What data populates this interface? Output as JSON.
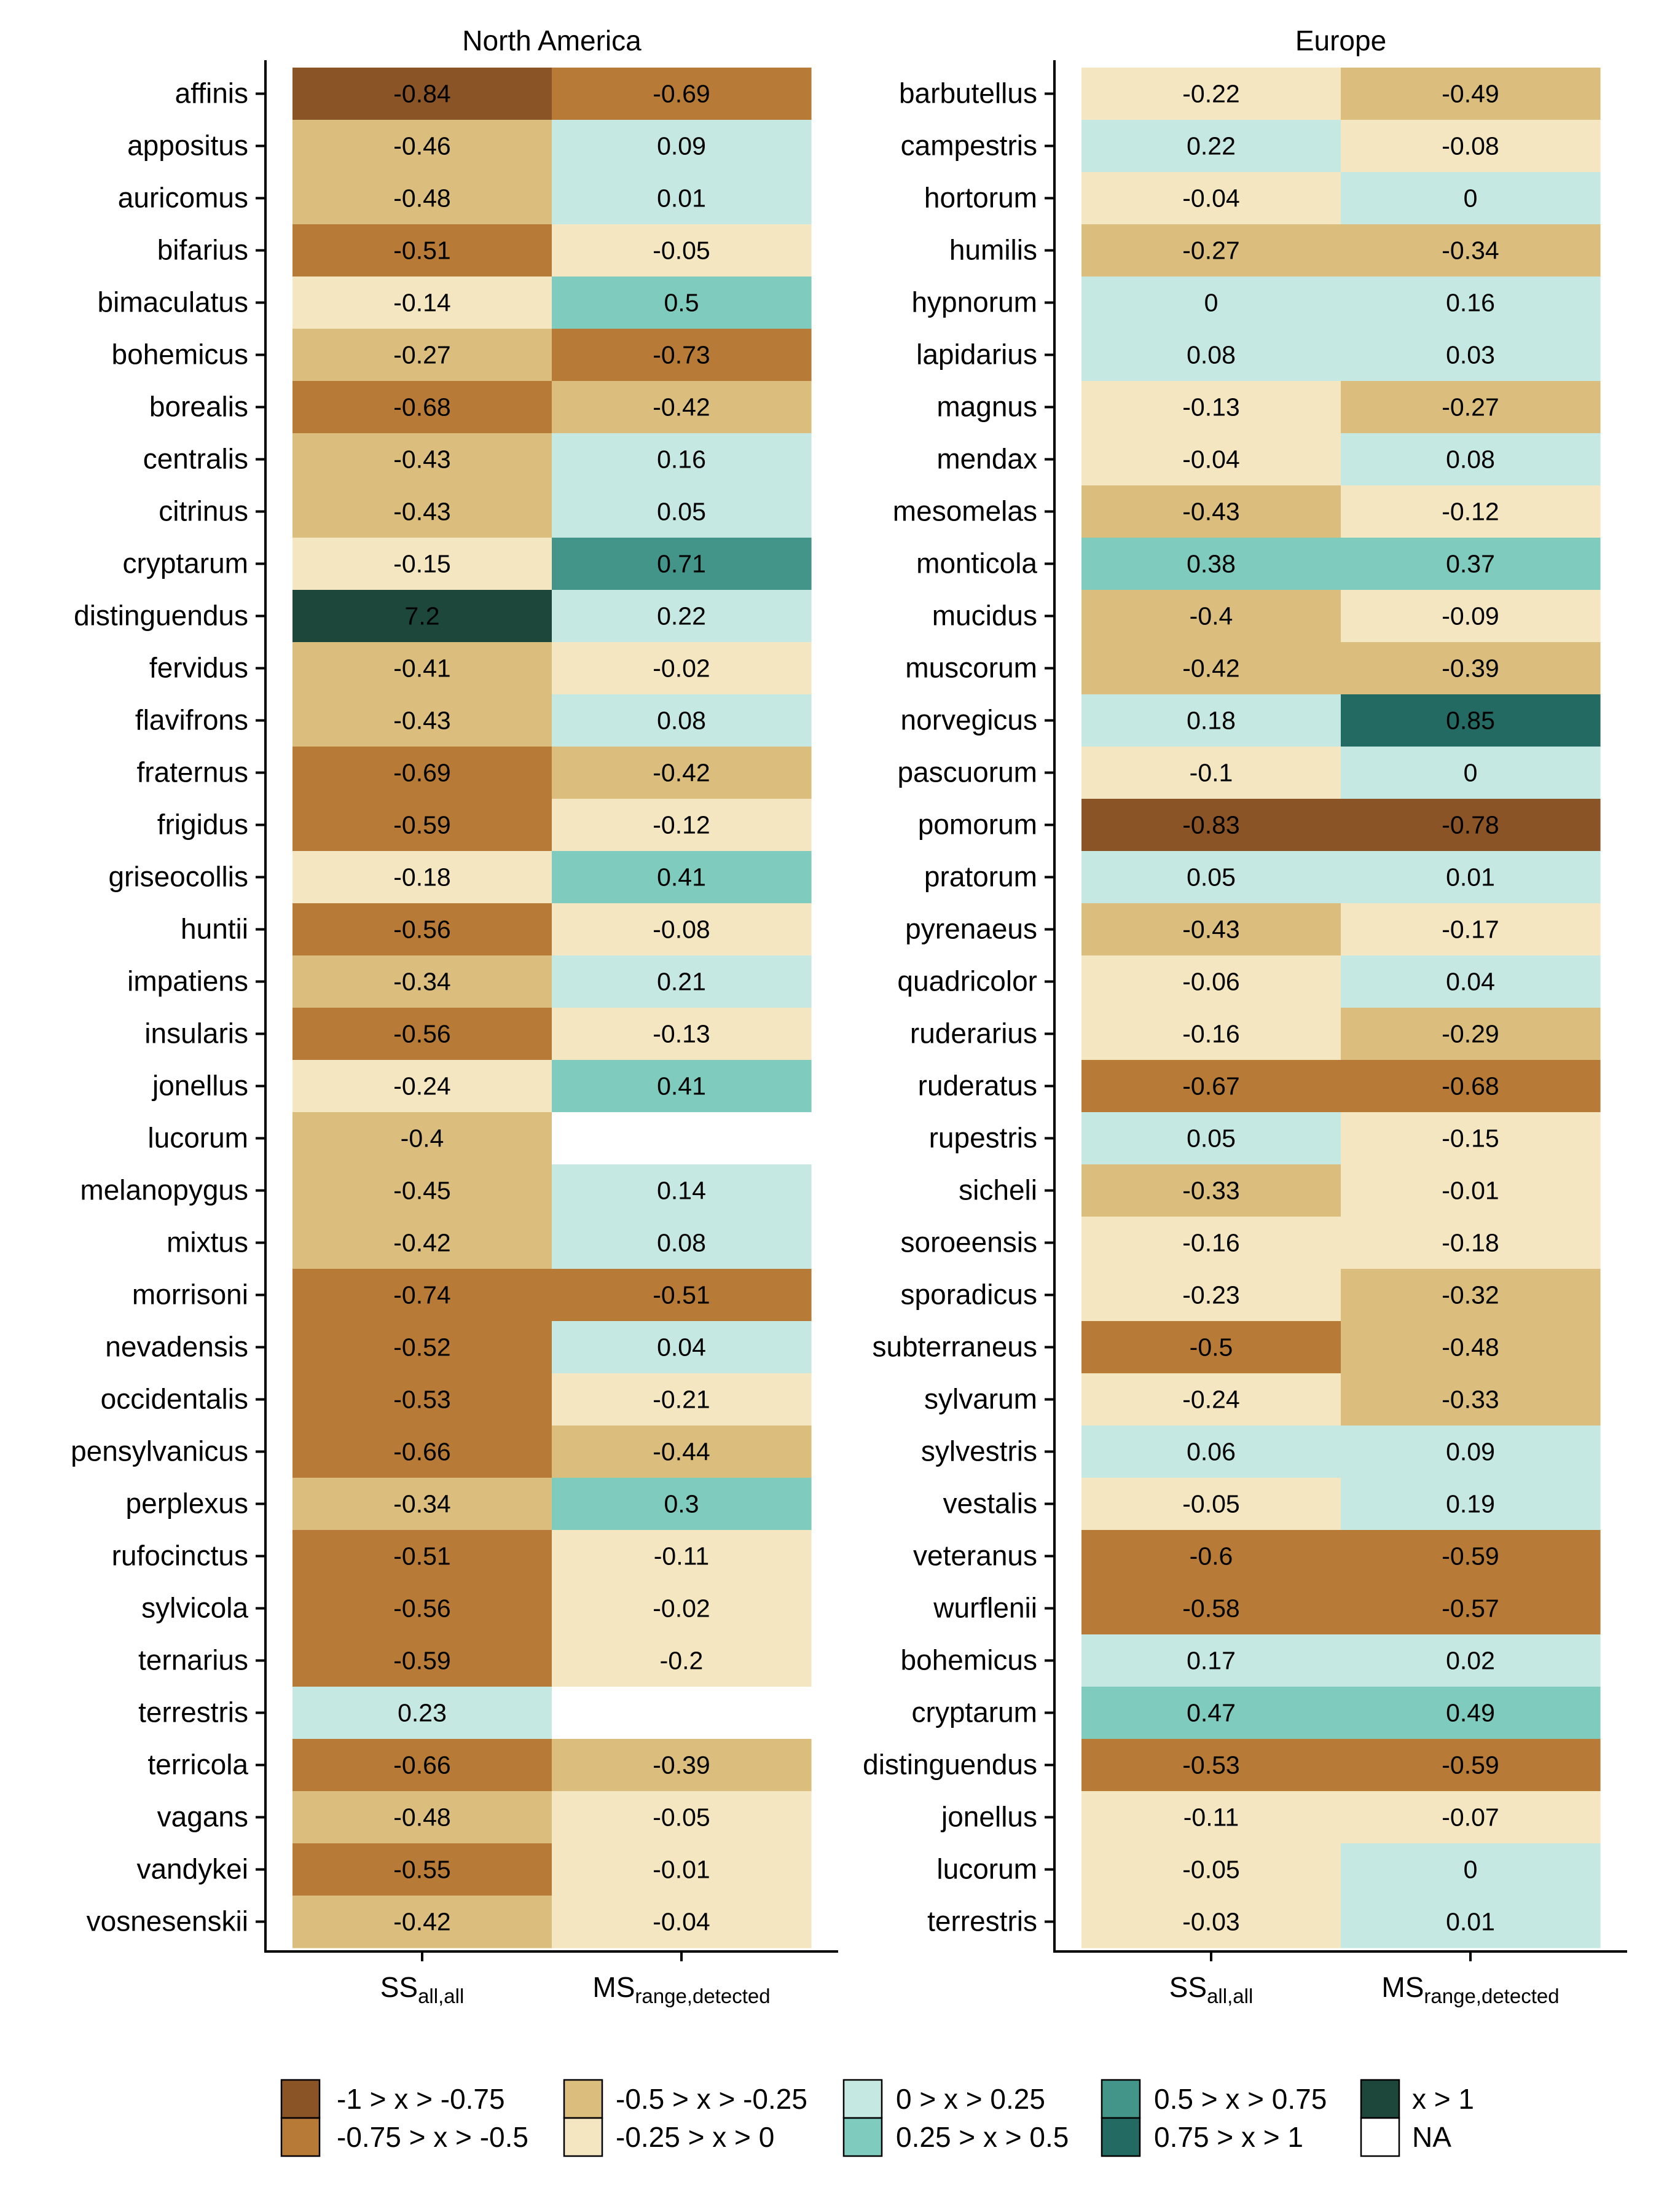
{
  "chart_data": [
    {
      "type": "heatmap",
      "title": "North America",
      "columns": [
        {
          "main": "SS",
          "sub": "all,all"
        },
        {
          "main": "MS",
          "sub": "range,detected"
        }
      ],
      "rows": [
        {
          "label": "affinis",
          "values": [
            -0.84,
            -0.69
          ],
          "labels": [
            "-0.84",
            "-0.69"
          ]
        },
        {
          "label": "appositus",
          "values": [
            -0.46,
            0.09
          ],
          "labels": [
            "-0.46",
            "0.09"
          ]
        },
        {
          "label": "auricomus",
          "values": [
            -0.48,
            0.01
          ],
          "labels": [
            "-0.48",
            "0.01"
          ]
        },
        {
          "label": "bifarius",
          "values": [
            -0.51,
            -0.05
          ],
          "labels": [
            "-0.51",
            "-0.05"
          ]
        },
        {
          "label": "bimaculatus",
          "values": [
            -0.14,
            0.5
          ],
          "labels": [
            "-0.14",
            "0.5"
          ]
        },
        {
          "label": "bohemicus",
          "values": [
            -0.27,
            -0.73
          ],
          "labels": [
            "-0.27",
            "-0.73"
          ]
        },
        {
          "label": "borealis",
          "values": [
            -0.68,
            -0.42
          ],
          "labels": [
            "-0.68",
            "-0.42"
          ]
        },
        {
          "label": "centralis",
          "values": [
            -0.43,
            0.16
          ],
          "labels": [
            "-0.43",
            "0.16"
          ]
        },
        {
          "label": "citrinus",
          "values": [
            -0.43,
            0.05
          ],
          "labels": [
            "-0.43",
            "0.05"
          ]
        },
        {
          "label": "cryptarum",
          "values": [
            -0.15,
            0.71
          ],
          "labels": [
            "-0.15",
            "0.71"
          ]
        },
        {
          "label": "distinguendus",
          "values": [
            7.2,
            0.22
          ],
          "labels": [
            "7.2",
            "0.22"
          ]
        },
        {
          "label": "fervidus",
          "values": [
            -0.41,
            -0.02
          ],
          "labels": [
            "-0.41",
            "-0.02"
          ]
        },
        {
          "label": "flavifrons",
          "values": [
            -0.43,
            0.08
          ],
          "labels": [
            "-0.43",
            "0.08"
          ]
        },
        {
          "label": "fraternus",
          "values": [
            -0.69,
            -0.42
          ],
          "labels": [
            "-0.69",
            "-0.42"
          ]
        },
        {
          "label": "frigidus",
          "values": [
            -0.59,
            -0.12
          ],
          "labels": [
            "-0.59",
            "-0.12"
          ]
        },
        {
          "label": "griseocollis",
          "values": [
            -0.18,
            0.41
          ],
          "labels": [
            "-0.18",
            "0.41"
          ]
        },
        {
          "label": "huntii",
          "values": [
            -0.56,
            -0.08
          ],
          "labels": [
            "-0.56",
            "-0.08"
          ]
        },
        {
          "label": "impatiens",
          "values": [
            -0.34,
            0.21
          ],
          "labels": [
            "-0.34",
            "0.21"
          ]
        },
        {
          "label": "insularis",
          "values": [
            -0.56,
            -0.13
          ],
          "labels": [
            "-0.56",
            "-0.13"
          ]
        },
        {
          "label": "jonellus",
          "values": [
            -0.24,
            0.41
          ],
          "labels": [
            "-0.24",
            "0.41"
          ]
        },
        {
          "label": "lucorum",
          "values": [
            -0.4,
            null
          ],
          "labels": [
            "-0.4",
            ""
          ]
        },
        {
          "label": "melanopygus",
          "values": [
            -0.45,
            0.14
          ],
          "labels": [
            "-0.45",
            "0.14"
          ]
        },
        {
          "label": "mixtus",
          "values": [
            -0.42,
            0.08
          ],
          "labels": [
            "-0.42",
            "0.08"
          ]
        },
        {
          "label": "morrisoni",
          "values": [
            -0.74,
            -0.51
          ],
          "labels": [
            "-0.74",
            "-0.51"
          ]
        },
        {
          "label": "nevadensis",
          "values": [
            -0.52,
            0.04
          ],
          "labels": [
            "-0.52",
            "0.04"
          ]
        },
        {
          "label": "occidentalis",
          "values": [
            -0.53,
            -0.21
          ],
          "labels": [
            "-0.53",
            "-0.21"
          ]
        },
        {
          "label": "pensylvanicus",
          "values": [
            -0.66,
            -0.44
          ],
          "labels": [
            "-0.66",
            "-0.44"
          ]
        },
        {
          "label": "perplexus",
          "values": [
            -0.34,
            0.3
          ],
          "labels": [
            "-0.34",
            "0.3"
          ]
        },
        {
          "label": "rufocinctus",
          "values": [
            -0.51,
            -0.11
          ],
          "labels": [
            "-0.51",
            "-0.11"
          ]
        },
        {
          "label": "sylvicola",
          "values": [
            -0.56,
            -0.02
          ],
          "labels": [
            "-0.56",
            "-0.02"
          ]
        },
        {
          "label": "ternarius",
          "values": [
            -0.59,
            -0.2
          ],
          "labels": [
            "-0.59",
            "-0.2"
          ]
        },
        {
          "label": "terrestris",
          "values": [
            0.23,
            null
          ],
          "labels": [
            "0.23",
            ""
          ]
        },
        {
          "label": "terricola",
          "values": [
            -0.66,
            -0.39
          ],
          "labels": [
            "-0.66",
            "-0.39"
          ]
        },
        {
          "label": "vagans",
          "values": [
            -0.48,
            -0.05
          ],
          "labels": [
            "-0.48",
            "-0.05"
          ]
        },
        {
          "label": "vandykei",
          "values": [
            -0.55,
            -0.01
          ],
          "labels": [
            "-0.55",
            "-0.01"
          ]
        },
        {
          "label": "vosnesenskii",
          "values": [
            -0.42,
            -0.04
          ],
          "labels": [
            "-0.42",
            "-0.04"
          ]
        }
      ]
    },
    {
      "type": "heatmap",
      "title": "Europe",
      "columns": [
        {
          "main": "SS",
          "sub": "all,all"
        },
        {
          "main": "MS",
          "sub": "range,detected"
        }
      ],
      "rows": [
        {
          "label": "barbutellus",
          "values": [
            -0.22,
            -0.49
          ],
          "labels": [
            "-0.22",
            "-0.49"
          ]
        },
        {
          "label": "campestris",
          "values": [
            0.22,
            -0.08
          ],
          "labels": [
            "0.22",
            "-0.08"
          ]
        },
        {
          "label": "hortorum",
          "values": [
            -0.04,
            0
          ],
          "labels": [
            "-0.04",
            "0"
          ]
        },
        {
          "label": "humilis",
          "values": [
            -0.27,
            -0.34
          ],
          "labels": [
            "-0.27",
            "-0.34"
          ]
        },
        {
          "label": "hypnorum",
          "values": [
            0,
            0.16
          ],
          "labels": [
            "0",
            "0.16"
          ]
        },
        {
          "label": "lapidarius",
          "values": [
            0.08,
            0.03
          ],
          "labels": [
            "0.08",
            "0.03"
          ]
        },
        {
          "label": "magnus",
          "values": [
            -0.13,
            -0.27
          ],
          "labels": [
            "-0.13",
            "-0.27"
          ]
        },
        {
          "label": "mendax",
          "values": [
            -0.04,
            0.08
          ],
          "labels": [
            "-0.04",
            "0.08"
          ]
        },
        {
          "label": "mesomelas",
          "values": [
            -0.43,
            -0.12
          ],
          "labels": [
            "-0.43",
            "-0.12"
          ]
        },
        {
          "label": "monticola",
          "values": [
            0.38,
            0.37
          ],
          "labels": [
            "0.38",
            "0.37"
          ]
        },
        {
          "label": "mucidus",
          "values": [
            -0.4,
            -0.09
          ],
          "labels": [
            "-0.4",
            "-0.09"
          ]
        },
        {
          "label": "muscorum",
          "values": [
            -0.42,
            -0.39
          ],
          "labels": [
            "-0.42",
            "-0.39"
          ]
        },
        {
          "label": "norvegicus",
          "values": [
            0.18,
            0.85
          ],
          "labels": [
            "0.18",
            "0.85"
          ]
        },
        {
          "label": "pascuorum",
          "values": [
            -0.1,
            0
          ],
          "labels": [
            "-0.1",
            "0"
          ]
        },
        {
          "label": "pomorum",
          "values": [
            -0.83,
            -0.78
          ],
          "labels": [
            "-0.83",
            "-0.78"
          ]
        },
        {
          "label": "pratorum",
          "values": [
            0.05,
            0.01
          ],
          "labels": [
            "0.05",
            "0.01"
          ]
        },
        {
          "label": "pyrenaeus",
          "values": [
            -0.43,
            -0.17
          ],
          "labels": [
            "-0.43",
            "-0.17"
          ]
        },
        {
          "label": "quadricolor",
          "values": [
            -0.06,
            0.04
          ],
          "labels": [
            "-0.06",
            "0.04"
          ]
        },
        {
          "label": "ruderarius",
          "values": [
            -0.16,
            -0.29
          ],
          "labels": [
            "-0.16",
            "-0.29"
          ]
        },
        {
          "label": "ruderatus",
          "values": [
            -0.67,
            -0.68
          ],
          "labels": [
            "-0.67",
            "-0.68"
          ]
        },
        {
          "label": "rupestris",
          "values": [
            0.05,
            -0.15
          ],
          "labels": [
            "0.05",
            "-0.15"
          ]
        },
        {
          "label": "sicheli",
          "values": [
            -0.33,
            -0.01
          ],
          "labels": [
            "-0.33",
            "-0.01"
          ]
        },
        {
          "label": "soroeensis",
          "values": [
            -0.16,
            -0.18
          ],
          "labels": [
            "-0.16",
            "-0.18"
          ]
        },
        {
          "label": "sporadicus",
          "values": [
            -0.23,
            -0.32
          ],
          "labels": [
            "-0.23",
            "-0.32"
          ]
        },
        {
          "label": "subterraneus",
          "values": [
            -0.5,
            -0.48
          ],
          "labels": [
            "-0.5",
            "-0.48"
          ]
        },
        {
          "label": "sylvarum",
          "values": [
            -0.24,
            -0.33
          ],
          "labels": [
            "-0.24",
            "-0.33"
          ]
        },
        {
          "label": "sylvestris",
          "values": [
            0.06,
            0.09
          ],
          "labels": [
            "0.06",
            "0.09"
          ]
        },
        {
          "label": "vestalis",
          "values": [
            -0.05,
            0.19
          ],
          "labels": [
            "-0.05",
            "0.19"
          ]
        },
        {
          "label": "veteranus",
          "values": [
            -0.6,
            -0.59
          ],
          "labels": [
            "-0.6",
            "-0.59"
          ]
        },
        {
          "label": "wurflenii",
          "values": [
            -0.58,
            -0.57
          ],
          "labels": [
            "-0.58",
            "-0.57"
          ]
        },
        {
          "label": "bohemicus",
          "values": [
            0.17,
            0.02
          ],
          "labels": [
            "0.17",
            "0.02"
          ]
        },
        {
          "label": "cryptarum",
          "values": [
            0.47,
            0.49
          ],
          "labels": [
            "0.47",
            "0.49"
          ]
        },
        {
          "label": "distinguendus",
          "values": [
            -0.53,
            -0.59
          ],
          "labels": [
            "-0.53",
            "-0.59"
          ]
        },
        {
          "label": "jonellus",
          "values": [
            -0.11,
            -0.07
          ],
          "labels": [
            "-0.11",
            "-0.07"
          ]
        },
        {
          "label": "lucorum",
          "values": [
            -0.05,
            0
          ],
          "labels": [
            "-0.05",
            "0"
          ]
        },
        {
          "label": "terrestris",
          "values": [
            -0.03,
            0.01
          ],
          "labels": [
            "-0.03",
            "0.01"
          ]
        }
      ]
    }
  ],
  "legend": [
    {
      "label": "-1 > x > -0.75",
      "color": "#8B5426"
    },
    {
      "label": "-0.75 > x > -0.5",
      "color": "#B87B37"
    },
    {
      "label": "-0.5 > x > -0.25",
      "color": "#DBBE7D"
    },
    {
      "label": "-0.25 > x > 0",
      "color": "#F3E6C0"
    },
    {
      "label": "0 > x > 0.25",
      "color": "#C5E8E2"
    },
    {
      "label": "0.25 > x > 0.5",
      "color": "#7FCBBD"
    },
    {
      "label": "0.5 > x > 0.75",
      "color": "#43958A"
    },
    {
      "label": "0.75 > x > 1",
      "color": "#236A62"
    },
    {
      "label": "x > 1",
      "color": "#1E473C"
    },
    {
      "label": "NA",
      "color": "#FFFFFF"
    }
  ]
}
